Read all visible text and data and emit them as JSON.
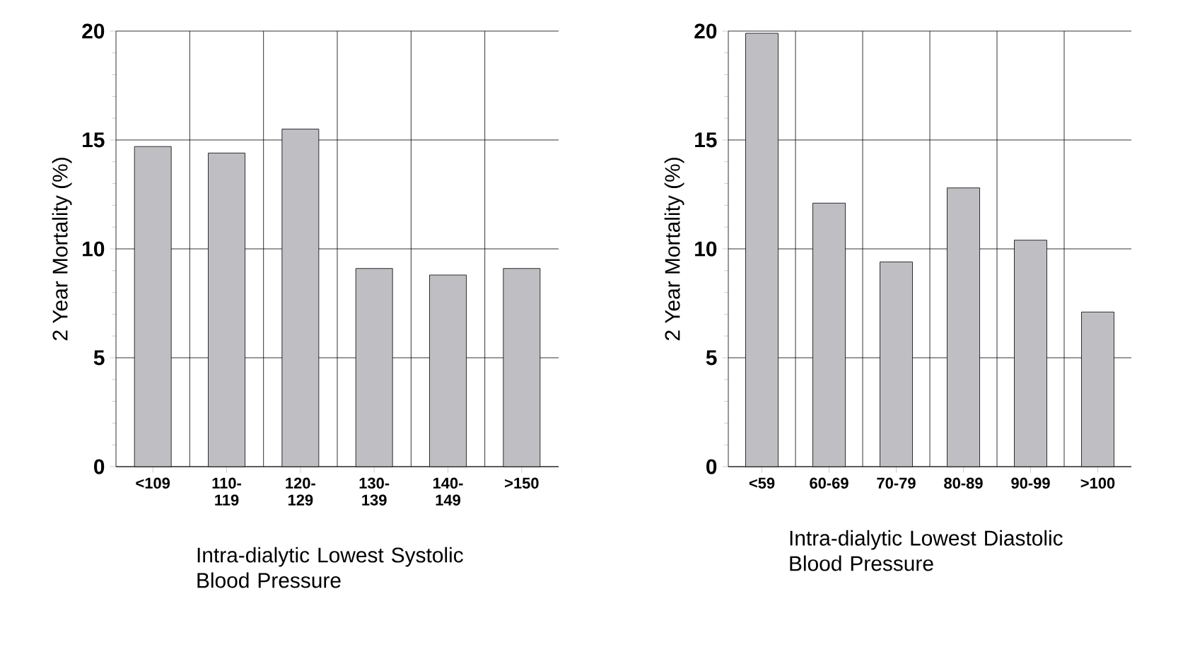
{
  "chart_data": [
    {
      "type": "bar",
      "xlabel": "Intra-dialytic Lowest Systolic Blood Pressure",
      "ylabel": "2 Year Mortality (%)",
      "categories": [
        "<109",
        "110-119",
        "120-129",
        "130-139",
        "140-149",
        ">150"
      ],
      "values": [
        14.7,
        14.4,
        15.5,
        9.1,
        8.8,
        9.1
      ],
      "color": "#bfbfc3",
      "ylim": [
        0,
        20
      ],
      "yticks": [
        0,
        5,
        10,
        15,
        20
      ],
      "grid": true
    },
    {
      "type": "bar",
      "xlabel": "Intra-dialytic Lowest Diastolic Blood Pressure",
      "ylabel": "2 Year Mortality (%)",
      "categories": [
        "<59",
        "60-69",
        "70-79",
        "80-89",
        "90-99",
        ">100"
      ],
      "values": [
        19.9,
        12.1,
        9.4,
        12.8,
        10.4,
        7.1
      ],
      "color": "#bfbfc3",
      "ylim": [
        0,
        20
      ],
      "yticks": [
        0,
        5,
        10,
        15,
        20
      ],
      "grid": true
    }
  ]
}
